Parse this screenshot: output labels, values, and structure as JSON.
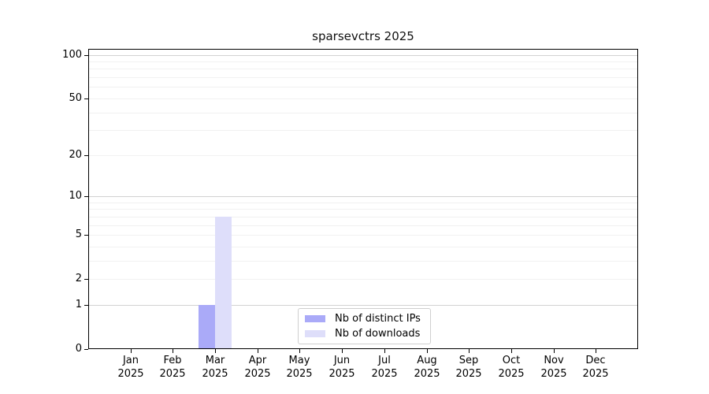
{
  "chart_data": {
    "type": "bar",
    "title": "sparsevctrs 2025",
    "months": [
      "Jan",
      "Feb",
      "Mar",
      "Apr",
      "May",
      "Jun",
      "Jul",
      "Aug",
      "Sep",
      "Oct",
      "Nov",
      "Dec"
    ],
    "year_label": "2025",
    "series": [
      {
        "name": "Nb of distinct IPs",
        "color": "#aaaaf8",
        "values": [
          0,
          0,
          1,
          0,
          0,
          0,
          0,
          0,
          0,
          0,
          0,
          0
        ]
      },
      {
        "name": "Nb of downloads",
        "color": "#dedefa",
        "values": [
          0,
          0,
          7,
          0,
          0,
          0,
          0,
          0,
          0,
          0,
          0,
          0
        ]
      }
    ],
    "y_scale": "log1p",
    "ylim": [
      0,
      110
    ],
    "y_ticks": [
      0,
      1,
      2,
      5,
      10,
      20,
      50,
      100
    ],
    "gridlines": {
      "major_values": [
        1,
        10,
        100
      ],
      "minor_values": [
        2,
        3,
        4,
        5,
        6,
        7,
        8,
        9,
        20,
        30,
        40,
        50,
        60,
        70,
        80,
        90
      ],
      "major_color": "#d2d2d2",
      "minor_color": "#f1f1f1"
    },
    "grid": true,
    "legend_position": "bottom-center",
    "axis_color": "#000000",
    "background_color": "#ffffff"
  }
}
